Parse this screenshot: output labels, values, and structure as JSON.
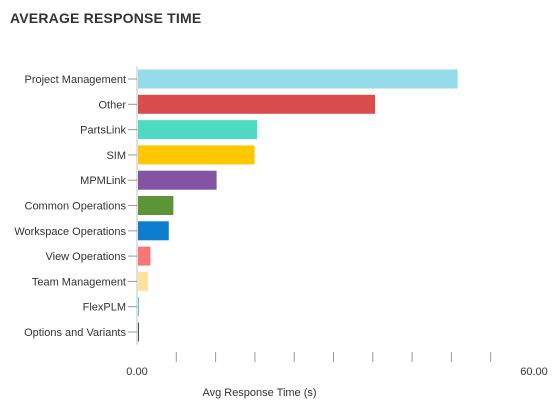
{
  "chart_data": {
    "type": "bar",
    "orientation": "horizontal",
    "title": "AVERAGE RESPONSE TIME",
    "xlabel": "Avg Response Time (s)",
    "ylabel": "",
    "xlim": [
      0,
      60
    ],
    "x_tick_labels": [
      "0.00",
      "60.00"
    ],
    "minor_ticks": 10,
    "grid": false,
    "legend": "none",
    "categories": [
      "Project Management",
      "Other",
      "PartsLink",
      "SIM",
      "MPMLink",
      "Common Operations",
      "Workspace Operations",
      "View Operations",
      "Team Management",
      "FlexPLM",
      "Options and Variants"
    ],
    "values": [
      48.8,
      36.2,
      18.2,
      17.8,
      12.0,
      5.4,
      4.7,
      1.9,
      1.5,
      0.15,
      0.1
    ],
    "colors": [
      "#95dbe9",
      "#db4c4c",
      "#4fdbc3",
      "#fdc800",
      "#8454a3",
      "#5d9438",
      "#0c7ccf",
      "#f77777",
      "#fde29c",
      "#5fbbe8",
      "#3b4a66"
    ]
  }
}
